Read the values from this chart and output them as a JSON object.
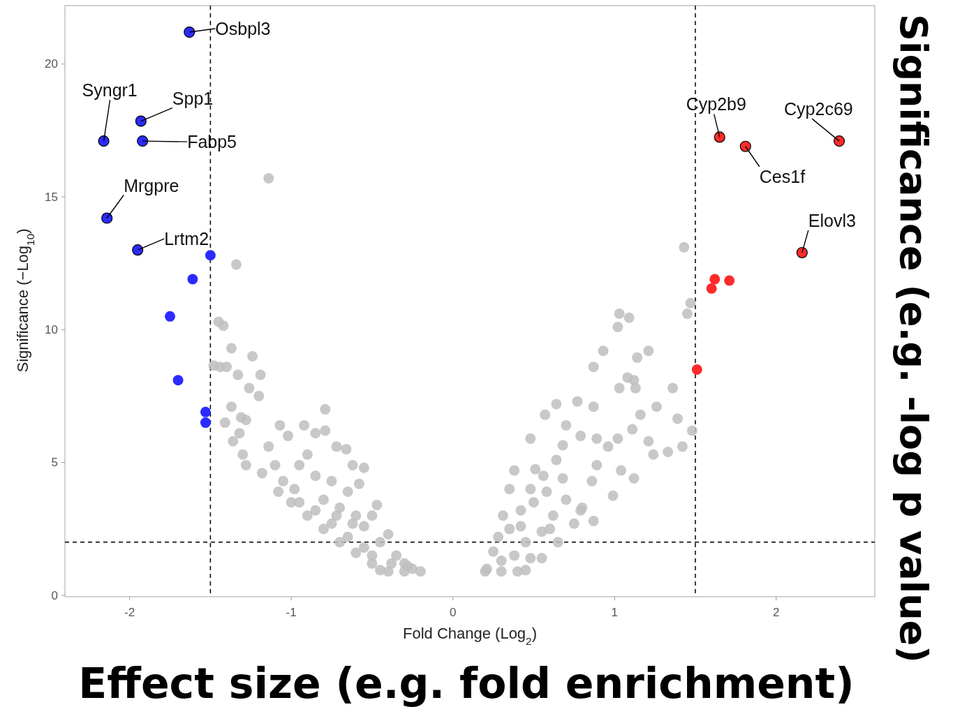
{
  "chart_data": {
    "type": "scatter",
    "xlabel": "Fold Change (Log$_{2}$)",
    "ylabel": "Significance (−Log$_{10}$)",
    "xlim": [
      -2.4,
      2.61
    ],
    "ylim": [
      0,
      22.2
    ],
    "xticks": [
      -2,
      -1,
      0,
      1,
      2
    ],
    "yticks": [
      0,
      5,
      10,
      15,
      20
    ],
    "grid": false,
    "marker": "circle",
    "ref_lines": [
      {
        "axis": "x",
        "value": -1.5,
        "line_style": "dashed",
        "color": "#000000"
      },
      {
        "axis": "x",
        "value": 1.5,
        "line_style": "dashed",
        "color": "#000000"
      },
      {
        "axis": "y",
        "value": 2,
        "line_style": "dashed",
        "color": "#000000"
      }
    ],
    "series": [
      {
        "color": "#bebebe",
        "x": [
          -1.14,
          -1.34,
          -1.45,
          -1.42,
          -1.37,
          -1.24,
          -1.48,
          -1.44,
          -1.4,
          -1.33,
          -1.19,
          -1.37,
          -1.2,
          -1.26,
          -1.31,
          -1.41,
          -1.28,
          -1.32,
          -1.36,
          -1.3,
          -1.28,
          -1.14,
          -1.07,
          -1.02,
          -0.92,
          -0.85,
          -0.79,
          -0.79,
          -0.72,
          -0.9,
          -0.66,
          -0.62,
          -0.55,
          -0.58,
          -0.47,
          -1.18,
          -1.1,
          -1.05,
          -0.98,
          -0.95,
          -0.85,
          -0.8,
          -0.75,
          -0.7,
          -0.65,
          -0.6,
          -0.55,
          -0.5,
          -0.45,
          -0.4,
          -0.35,
          -0.3,
          -0.25,
          -0.2,
          -0.3,
          -0.4,
          -0.45,
          -0.5,
          -0.6,
          -0.7,
          -0.8,
          -0.9,
          -1.0,
          -1.08,
          -0.95,
          -0.85,
          -0.75,
          -0.65,
          -0.55,
          -0.5,
          -0.38,
          -0.28,
          -0.62,
          -0.72,
          1.43,
          1.47,
          1.45,
          1.03,
          1.02,
          1.09,
          0.93,
          1.21,
          1.14,
          0.87,
          1.08,
          1.12,
          1.03,
          1.13,
          1.36,
          0.77,
          0.87,
          1.26,
          1.16,
          1.39,
          1.48,
          1.42,
          1.11,
          1.21,
          1.24,
          1.33,
          1.02,
          0.89,
          0.79,
          0.96,
          1.04,
          1.12,
          0.99,
          0.7,
          0.68,
          0.64,
          0.89,
          0.86,
          0.64,
          0.57,
          0.48,
          0.38,
          0.51,
          0.79,
          0.87,
          0.48,
          0.35,
          0.31,
          0.25,
          0.21,
          0.2,
          0.3,
          0.4,
          0.45,
          0.55,
          0.65,
          0.75,
          0.8,
          0.28,
          0.35,
          0.42,
          0.5,
          0.58,
          0.62,
          0.7,
          0.45,
          0.55,
          0.38,
          0.3,
          0.48,
          0.6,
          0.68,
          0.56,
          0.42
        ],
        "values": [
          15.7,
          12.45,
          10.3,
          10.15,
          9.3,
          9.0,
          8.65,
          8.6,
          8.6,
          8.3,
          8.3,
          7.1,
          7.5,
          7.8,
          6.7,
          6.5,
          6.6,
          6.1,
          5.8,
          5.3,
          4.9,
          5.6,
          6.4,
          6.0,
          6.4,
          6.1,
          6.2,
          7.0,
          5.6,
          5.3,
          5.5,
          4.9,
          4.8,
          4.2,
          3.4,
          4.6,
          4.9,
          4.3,
          4.0,
          4.9,
          4.5,
          3.6,
          4.3,
          3.3,
          3.9,
          3.0,
          2.6,
          3.0,
          2.0,
          2.3,
          1.5,
          1.2,
          1.0,
          0.9,
          0.9,
          0.9,
          0.95,
          1.2,
          1.6,
          2.0,
          2.5,
          3.0,
          3.5,
          3.9,
          3.5,
          3.2,
          2.7,
          2.2,
          1.8,
          1.5,
          1.2,
          1.1,
          2.7,
          3.0,
          13.1,
          11.0,
          10.6,
          10.6,
          10.1,
          10.45,
          9.2,
          9.2,
          8.95,
          8.6,
          8.2,
          8.1,
          7.8,
          7.8,
          7.8,
          7.3,
          7.1,
          7.1,
          6.8,
          6.65,
          6.2,
          5.6,
          6.25,
          5.8,
          5.3,
          5.4,
          5.9,
          5.9,
          6.0,
          5.6,
          4.7,
          4.4,
          3.75,
          6.4,
          5.65,
          5.1,
          4.9,
          4.3,
          7.2,
          6.8,
          5.9,
          4.7,
          4.75,
          3.2,
          2.8,
          4.0,
          4.0,
          3.0,
          1.65,
          1.0,
          0.9,
          0.9,
          0.9,
          0.95,
          1.4,
          2.0,
          2.7,
          3.3,
          2.2,
          2.5,
          3.2,
          3.5,
          3.9,
          3.0,
          3.6,
          2.0,
          2.4,
          1.5,
          1.3,
          1.4,
          2.5,
          4.4,
          4.5,
          2.6
        ]
      },
      {
        "color": "#2b2bff",
        "x": [
          -1.63,
          -2.16,
          -1.93,
          -1.92,
          -2.14,
          -1.95,
          -1.5,
          -1.61,
          -1.75,
          -1.7,
          -1.53,
          -1.53
        ],
        "values": [
          21.2,
          17.1,
          17.85,
          17.1,
          14.2,
          13.0,
          12.8,
          11.9,
          10.5,
          8.1,
          6.9,
          6.5
        ]
      },
      {
        "color": "#ff2b2b",
        "x": [
          1.65,
          1.81,
          2.39,
          2.16,
          1.62,
          1.71,
          1.6,
          1.51
        ],
        "values": [
          17.25,
          16.9,
          17.1,
          12.9,
          11.9,
          11.85,
          11.55,
          8.5
        ]
      }
    ],
    "annotations": [
      {
        "text": "Osbpl3",
        "x": -1.63,
        "y": 21.2
      },
      {
        "text": "Syngr1",
        "x": -2.16,
        "y": 17.1
      },
      {
        "text": "Spp1",
        "x": -1.93,
        "y": 17.85
      },
      {
        "text": "Fabp5",
        "x": -1.92,
        "y": 17.1
      },
      {
        "text": "Mrgpre",
        "x": -2.14,
        "y": 14.2
      },
      {
        "text": "Lrtm2",
        "x": -1.95,
        "y": 13.0
      },
      {
        "text": "Cyp2b9",
        "x": 1.65,
        "y": 17.25
      },
      {
        "text": "Cyp2c69",
        "x": 2.39,
        "y": 17.1
      },
      {
        "text": "Ces1f",
        "x": 1.81,
        "y": 16.9
      },
      {
        "text": "Elovl3",
        "x": 2.16,
        "y": 12.9
      },
      "Effect size (e.g. fold enrichment)",
      "Significance (e.g. -log p value)"
    ]
  }
}
